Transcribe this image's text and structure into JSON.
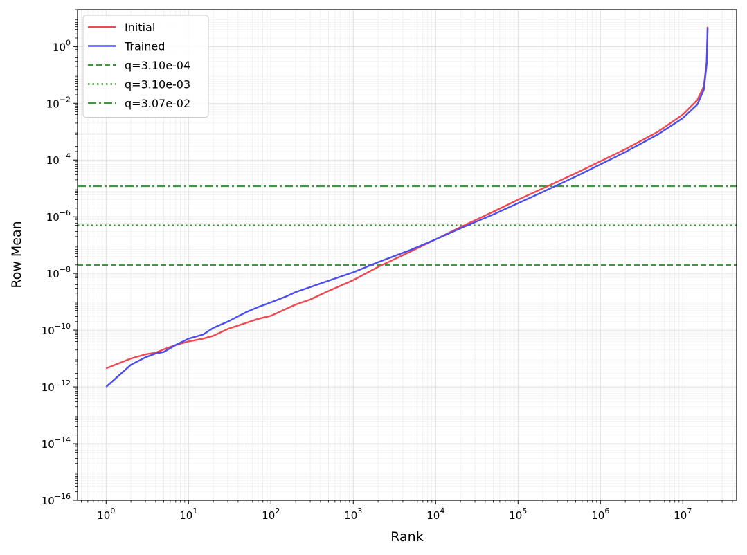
{
  "chart_data": {
    "type": "line",
    "title": "",
    "xlabel": "Rank",
    "ylabel": "Row Mean",
    "xscale": "log",
    "yscale": "log",
    "xlim": [
      0.45,
      45000000
    ],
    "ylim": [
      1e-16,
      20
    ],
    "grid": true,
    "legend_position": "top-left",
    "x_ticks": [
      {
        "value": 1,
        "base": "10",
        "exp": "0"
      },
      {
        "value": 10,
        "base": "10",
        "exp": "1"
      },
      {
        "value": 100,
        "base": "10",
        "exp": "2"
      },
      {
        "value": 1000,
        "base": "10",
        "exp": "3"
      },
      {
        "value": 10000,
        "base": "10",
        "exp": "4"
      },
      {
        "value": 100000,
        "base": "10",
        "exp": "5"
      },
      {
        "value": 1000000,
        "base": "10",
        "exp": "6"
      },
      {
        "value": 10000000,
        "base": "10",
        "exp": "7"
      }
    ],
    "y_ticks": [
      {
        "value": 1e-16,
        "base": "10",
        "exp": "−16"
      },
      {
        "value": 1e-14,
        "base": "10",
        "exp": "−14"
      },
      {
        "value": 1e-12,
        "base": "10",
        "exp": "−12"
      },
      {
        "value": 1e-10,
        "base": "10",
        "exp": "−10"
      },
      {
        "value": 1e-08,
        "base": "10",
        "exp": "−8"
      },
      {
        "value": 1e-06,
        "base": "10",
        "exp": "−6"
      },
      {
        "value": 0.0001,
        "base": "10",
        "exp": "−4"
      },
      {
        "value": 0.01,
        "base": "10",
        "exp": "−2"
      },
      {
        "value": 1,
        "base": "10",
        "exp": "0"
      }
    ],
    "series": [
      {
        "name": "Initial",
        "color": "#f0484e",
        "style": "solid",
        "points": [
          [
            1,
            4.5e-12
          ],
          [
            2,
            1e-11
          ],
          [
            3,
            1.4e-11
          ],
          [
            4,
            1.6e-11
          ],
          [
            5,
            2.1e-11
          ],
          [
            7,
            3e-11
          ],
          [
            10,
            4e-11
          ],
          [
            15,
            5e-11
          ],
          [
            20,
            6.3e-11
          ],
          [
            30,
            1.1e-10
          ],
          [
            50,
            1.8e-10
          ],
          [
            70,
            2.5e-10
          ],
          [
            100,
            3.2e-10
          ],
          [
            150,
            5.5e-10
          ],
          [
            200,
            8e-10
          ],
          [
            300,
            1.2e-09
          ],
          [
            500,
            2.4e-09
          ],
          [
            1000,
            5.8e-09
          ],
          [
            2000,
            1.7e-08
          ],
          [
            5000,
            6e-08
          ],
          [
            10000,
            1.6e-07
          ],
          [
            20000,
            4.3e-07
          ],
          [
            50000,
            1.5e-06
          ],
          [
            100000,
            4e-06
          ],
          [
            200000,
            1e-05
          ],
          [
            500000,
            3.4e-05
          ],
          [
            1000000,
            9e-05
          ],
          [
            2000000,
            0.00024
          ],
          [
            5000000,
            0.001
          ],
          [
            10000000,
            0.004
          ],
          [
            15000000,
            0.013
          ],
          [
            18000000,
            0.04
          ],
          [
            19500000,
            0.3
          ],
          [
            20000000,
            5.0
          ]
        ]
      },
      {
        "name": "Trained",
        "color": "#4a4ef0",
        "style": "solid",
        "points": [
          [
            1,
            1e-12
          ],
          [
            2,
            6e-12
          ],
          [
            3,
            1.1e-11
          ],
          [
            4,
            1.5e-11
          ],
          [
            5,
            1.7e-11
          ],
          [
            7,
            3e-11
          ],
          [
            10,
            5e-11
          ],
          [
            15,
            7e-11
          ],
          [
            20,
            1.2e-10
          ],
          [
            30,
            2e-10
          ],
          [
            50,
            4.3e-10
          ],
          [
            70,
            6.5e-10
          ],
          [
            100,
            9.5e-10
          ],
          [
            150,
            1.5e-09
          ],
          [
            200,
            2.2e-09
          ],
          [
            300,
            3.3e-09
          ],
          [
            500,
            5.5e-09
          ],
          [
            1000,
            1.1e-08
          ],
          [
            2000,
            2.5e-08
          ],
          [
            5000,
            6.8e-08
          ],
          [
            10000,
            1.6e-07
          ],
          [
            20000,
            3.9e-07
          ],
          [
            50000,
            1.2e-06
          ],
          [
            100000,
            3e-06
          ],
          [
            200000,
            7.5e-06
          ],
          [
            500000,
            2.6e-05
          ],
          [
            1000000,
            7e-05
          ],
          [
            2000000,
            0.00019
          ],
          [
            5000000,
            0.0008
          ],
          [
            10000000,
            0.003
          ],
          [
            15000000,
            0.009
          ],
          [
            18000000,
            0.03
          ],
          [
            19500000,
            0.25
          ],
          [
            20000000,
            4.5
          ]
        ]
      },
      {
        "name": "q=3.10e-04",
        "color": "#3c9a3c",
        "style": "dashed",
        "y": 2e-08
      },
      {
        "name": "q=3.10e-03",
        "color": "#3c9a3c",
        "style": "dotted",
        "y": 5e-07
      },
      {
        "name": "q=3.07e-02",
        "color": "#3c9a3c",
        "style": "dashdot",
        "y": 1.2e-05
      }
    ]
  }
}
